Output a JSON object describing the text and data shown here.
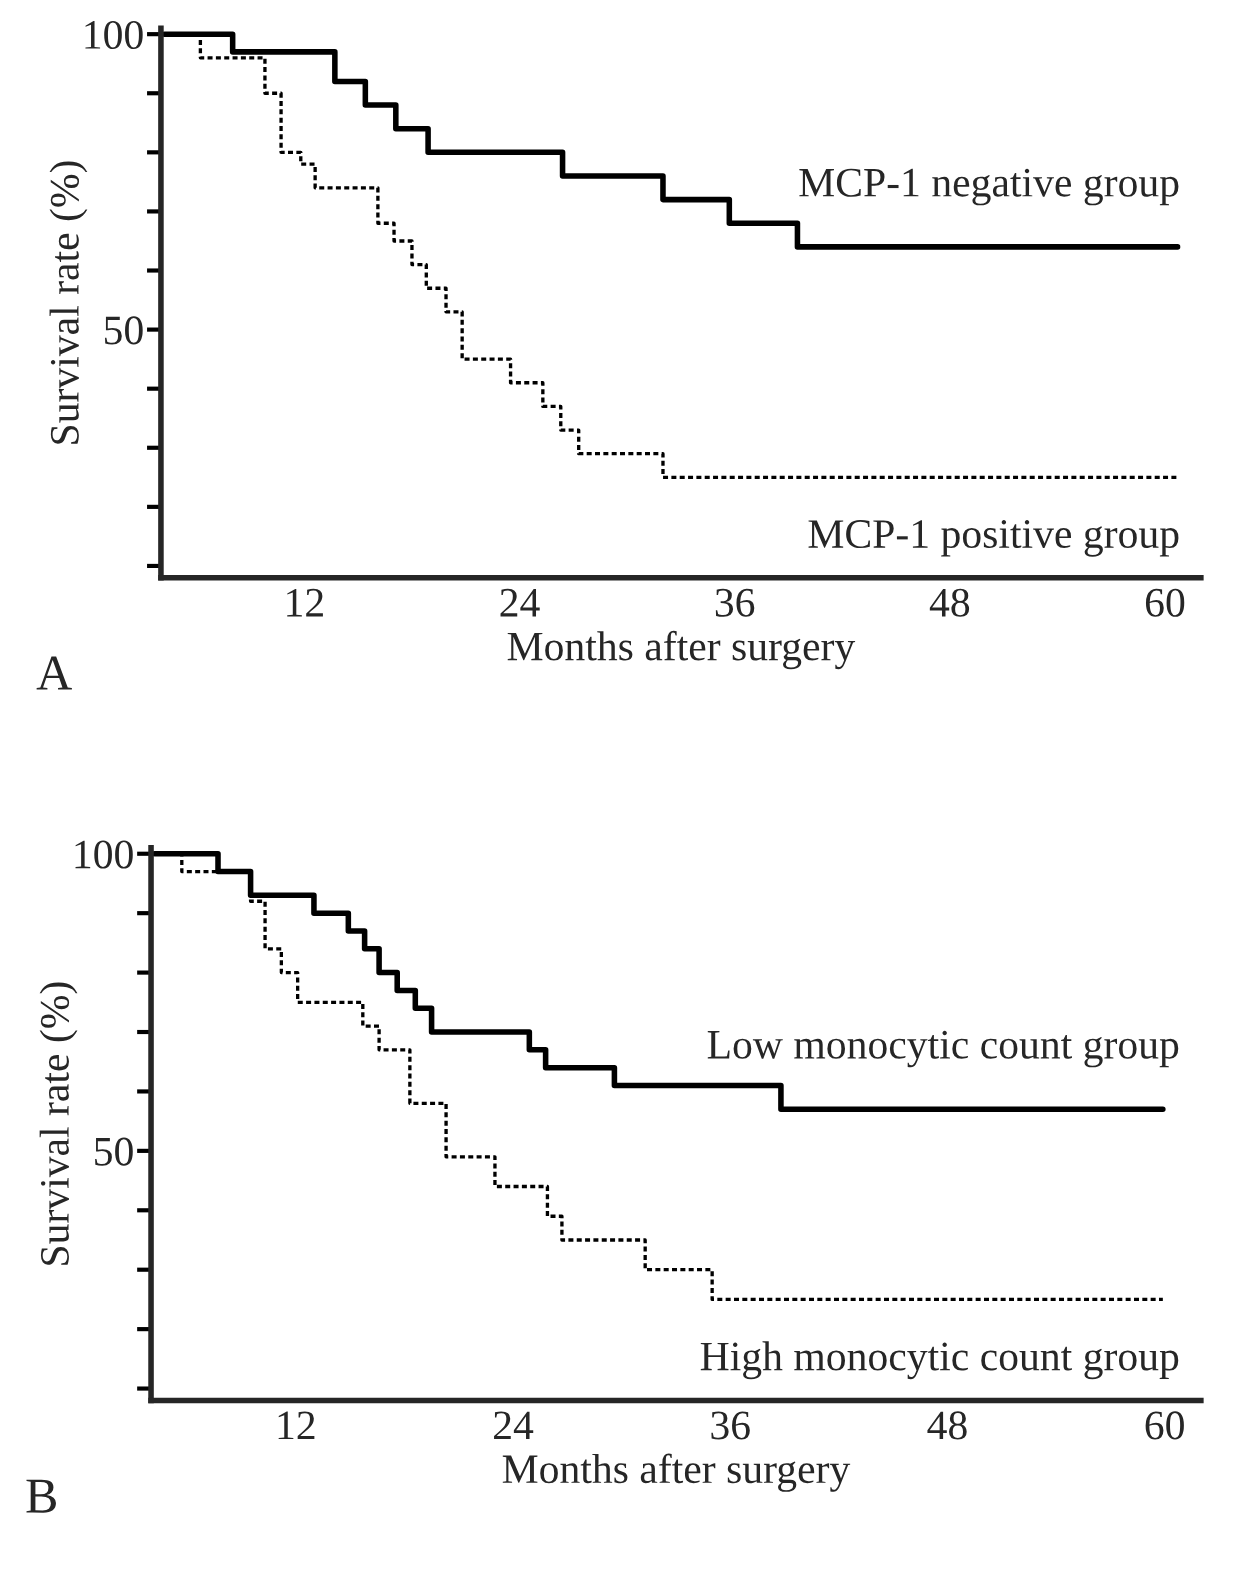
{
  "chart_data": [
    {
      "type": "step",
      "xlabel": "Months after surgery",
      "ylabel": "Survival rate (%)",
      "annotations": [
        "A"
      ],
      "xlim": [
        4,
        62
      ],
      "xticks": [
        12,
        24,
        36,
        48,
        60
      ],
      "ylim": [
        8,
        101
      ],
      "yticks": [
        {
          "value": 10,
          "label": null
        },
        {
          "value": 20,
          "label": null
        },
        {
          "value": 30,
          "label": null
        },
        {
          "value": 40,
          "label": null
        },
        50,
        {
          "value": 60,
          "label": null
        },
        {
          "value": 70,
          "label": null
        },
        {
          "value": 80,
          "label": null
        },
        {
          "value": 90,
          "label": null
        },
        100
      ],
      "grid": false,
      "legend": false,
      "series": [
        {
          "name": "MCP-1 negative group",
          "color": "#000000",
          "line_style": "solid",
          "x": [
            4.2,
            8.0,
            13.7,
            15.4,
            17.1,
            18.9,
            26.4,
            32.0,
            35.7,
            39.5,
            60.7
          ],
          "values": [
            100,
            97,
            92,
            88,
            84,
            80,
            76,
            72,
            68,
            64,
            64
          ]
        },
        {
          "name": "MCP-1 positive group",
          "color": "#000000",
          "line_style": "dashed",
          "x": [
            4.2,
            6.2,
            9.8,
            10.7,
            11.8,
            12.6,
            16.1,
            17.0,
            18.0,
            18.8,
            19.9,
            20.8,
            23.5,
            25.3,
            26.3,
            27.3,
            32.0,
            60.7
          ],
          "values": [
            100,
            96,
            90,
            80,
            78,
            74,
            68,
            65,
            61,
            57,
            53,
            45,
            41,
            37,
            33,
            29,
            25,
            25
          ]
        }
      ]
    },
    {
      "type": "step",
      "xlabel": "Months after surgery",
      "ylabel": "Survival rate (%)",
      "annotations": [
        "B"
      ],
      "xlim": [
        4,
        62
      ],
      "xticks": [
        12,
        24,
        36,
        48,
        60
      ],
      "ylim": [
        8,
        101
      ],
      "yticks": [
        {
          "value": 10,
          "label": null
        },
        {
          "value": 20,
          "label": null
        },
        {
          "value": 30,
          "label": null
        },
        {
          "value": 40,
          "label": null
        },
        50,
        {
          "value": 60,
          "label": null
        },
        {
          "value": 70,
          "label": null
        },
        {
          "value": 80,
          "label": null
        },
        {
          "value": 90,
          "label": null
        },
        100
      ],
      "grid": false,
      "legend": false,
      "series": [
        {
          "name": "Low monocytic count group",
          "color": "#000000",
          "line_style": "solid",
          "x": [
            4.2,
            7.7,
            9.5,
            13.0,
            14.9,
            15.8,
            16.6,
            17.6,
            18.6,
            19.5,
            24.9,
            25.8,
            29.6,
            38.8,
            59.9
          ],
          "values": [
            100,
            97,
            93,
            90,
            87,
            84,
            80,
            77,
            74,
            70,
            67,
            64,
            61,
            57,
            57
          ]
        },
        {
          "name": "High monocytic count group",
          "color": "#000000",
          "line_style": "dashed",
          "x": [
            4.2,
            5.7,
            9.5,
            10.3,
            11.2,
            12.1,
            15.7,
            16.6,
            18.3,
            20.3,
            23.0,
            25.9,
            26.7,
            31.3,
            35.0,
            59.9
          ],
          "values": [
            100,
            97,
            92,
            84,
            80,
            75,
            71,
            67,
            58,
            49,
            44,
            39,
            35,
            30,
            25,
            25
          ]
        }
      ]
    }
  ]
}
